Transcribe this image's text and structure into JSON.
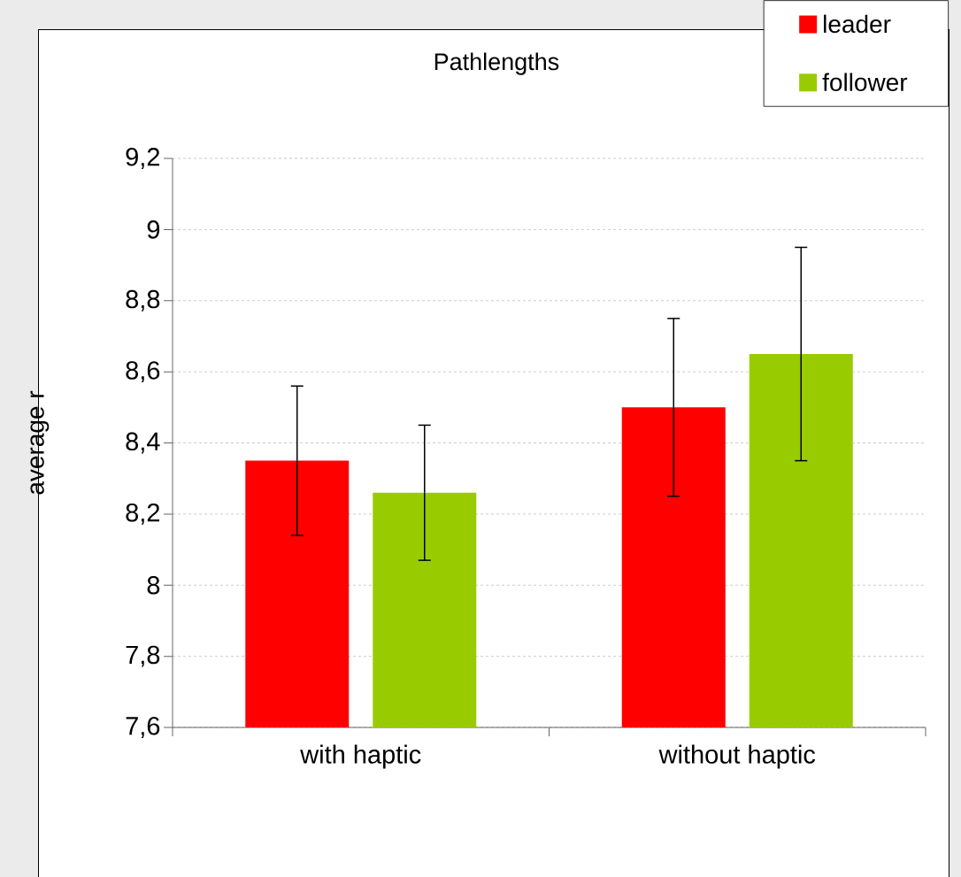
{
  "chart_data": {
    "type": "bar",
    "title": "Pathlengths",
    "ylabel": "average r",
    "categories": [
      "with haptic",
      "without haptic"
    ],
    "series": [
      {
        "name": "leader",
        "color": "#ff0000",
        "values": [
          8.35,
          8.5
        ],
        "errors": [
          0.21,
          0.25
        ]
      },
      {
        "name": "follower",
        "color": "#99cc00",
        "values": [
          8.26,
          8.65
        ],
        "errors": [
          0.19,
          0.3
        ]
      }
    ],
    "ylim": [
      7.6,
      9.2
    ],
    "yticks": [
      {
        "value": 7.6,
        "label": "7,6"
      },
      {
        "value": 7.8,
        "label": "7,8"
      },
      8,
      {
        "value": 8.2,
        "label": "8,2"
      },
      {
        "value": 8.4,
        "label": "8,4"
      },
      {
        "value": 8.6,
        "label": "8,6"
      },
      {
        "value": 8.8,
        "label": "8,8"
      },
      9,
      {
        "value": 9.2,
        "label": "9,2"
      }
    ],
    "grid": "y",
    "legend": "top right"
  }
}
